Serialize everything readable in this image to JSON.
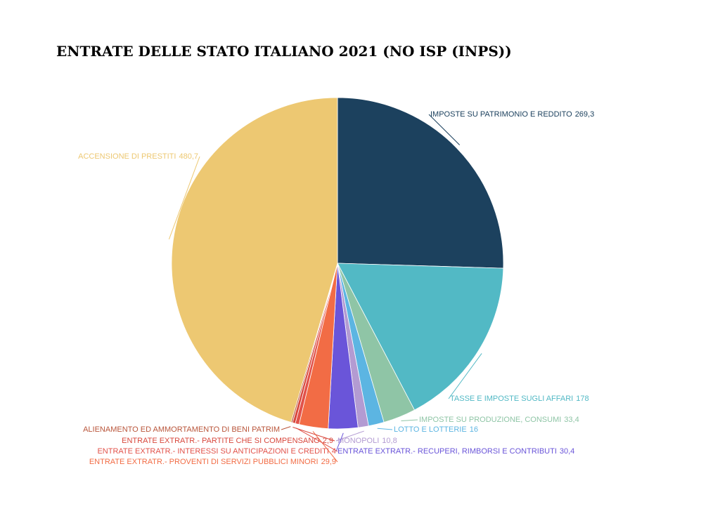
{
  "chart_data": {
    "type": "pie",
    "title": "ENTRATE DELLE STATO ITALIANO 2021 (NO ISP (INPS))",
    "categories": [
      "IMPOSTE SU PATRIMONIO E REDDITO",
      "TASSE E IMPOSTE SUGLI AFFARI",
      "IMPOSTE SU PRODUZIONE, CONSUMI",
      "LOTTO E LOTTERIE",
      "MONOPOLI",
      "ENTRATE EXTRATR.- RECUPERI, RIMBORSI E CONTRIBUTI",
      "ENTRATE EXTRATR.- PROVENTI DI SERVIZI PUBBLICI MINORI",
      "ENTRATE EXTRATR.- INTERESSI SU ANTICIPAZIONI E CREDITI",
      "ENTRATE EXTRATR.- PARTITE CHE SI COMPENSANO",
      "ALIENAMENTO ED AMMORTAMENTO DI BENI PATRIM",
      "ACCENSIONE DI PRESTITI"
    ],
    "values": [
      269.3,
      178,
      33.4,
      16,
      10.8,
      30.4,
      29.9,
      4,
      2.9,
      1.5,
      480.7
    ],
    "value_labels": [
      "269,3",
      "178",
      "33,4",
      "16",
      "10,8",
      "30,4",
      "29,9",
      "4",
      "2,9",
      null,
      "480,7"
    ],
    "colors": [
      "#1c415e",
      "#52b9c5",
      "#8fc5a6",
      "#5cb5e2",
      "#b39bd2",
      "#6a55d9",
      "#f26c45",
      "#e2524a",
      "#d8473c",
      "#b9553a",
      "#edc872"
    ]
  }
}
